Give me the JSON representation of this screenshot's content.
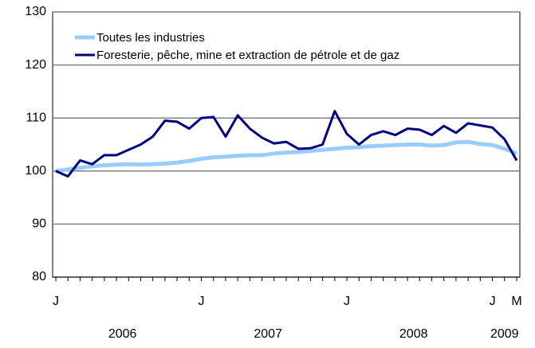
{
  "chart_data": {
    "type": "line",
    "categories": [
      "J",
      null,
      null,
      null,
      null,
      null,
      null,
      null,
      null,
      null,
      null,
      null,
      "J",
      null,
      null,
      null,
      null,
      null,
      null,
      null,
      null,
      null,
      null,
      null,
      "J",
      null,
      null,
      null,
      null,
      null,
      null,
      null,
      null,
      null,
      null,
      null,
      "J",
      null,
      "M"
    ],
    "year_labels": [
      "2006",
      "2007",
      "2008",
      "2009"
    ],
    "series": [
      {
        "name": "Toutes les industries",
        "color": "#99ccff",
        "values": [
          100,
          100.3,
          100.6,
          100.9,
          101.1,
          101.2,
          101.3,
          101.2,
          101.3,
          101.4,
          101.6,
          101.9,
          102.3,
          102.6,
          102.7,
          102.9,
          103,
          103,
          103.3,
          103.5,
          103.6,
          103.8,
          104,
          104.2,
          104.4,
          104.5,
          104.7,
          104.8,
          104.9,
          105,
          105,
          104.8,
          104.9,
          105.4,
          105.5,
          105.1,
          104.9,
          104.2,
          103.3
        ]
      },
      {
        "name": "Foresterie, pêche, mine et extraction de pétrole et de gaz",
        "color": "#000080",
        "values": [
          100,
          99,
          102,
          101.3,
          103,
          103,
          104,
          105,
          106.5,
          109.5,
          109.3,
          108,
          110,
          110.2,
          106.5,
          110.5,
          108,
          106.3,
          105.2,
          105.5,
          104.2,
          104.3,
          105,
          111.3,
          107,
          105,
          106.8,
          107.5,
          106.8,
          108,
          107.8,
          106.8,
          108.5,
          107.2,
          109,
          108.6,
          108.2,
          106,
          102
        ]
      }
    ],
    "ylim": [
      80,
      130
    ],
    "yticks": [
      80,
      90,
      100,
      110,
      120,
      130
    ],
    "grid": true
  }
}
